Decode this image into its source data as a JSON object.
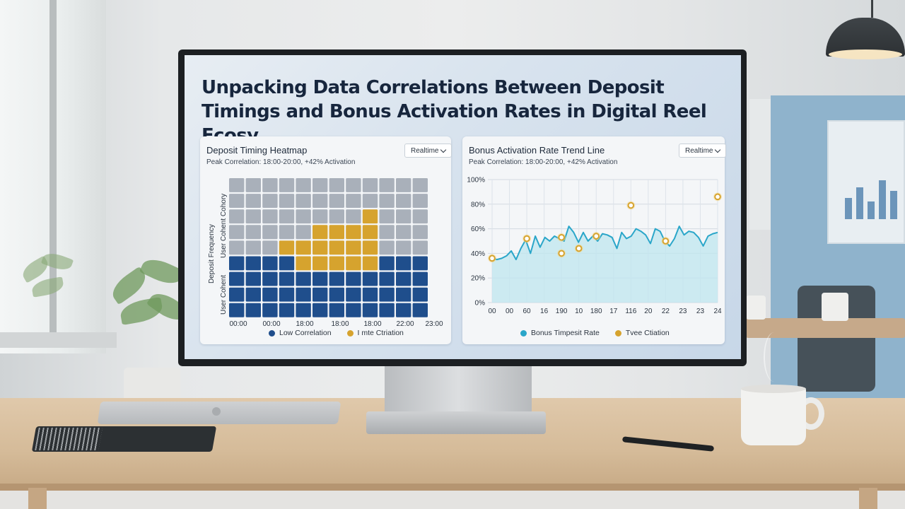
{
  "dashboard": {
    "title": "Unpacking Data Correlations Between Deposit Timings and Bonus Activation Rates in Digital Reel Ecosy."
  },
  "heatmap_card": {
    "title": "Deposit Timing Heatmap",
    "subtitle": "Peak Correlation: 18:00-20:00, +42% Activation",
    "dropdown": "Realtime",
    "y_labels": [
      "Deposit Frequency",
      "User Cohent Cohory",
      "User Cohent"
    ],
    "x_labels": [
      "00:00",
      "00:00",
      "18:00",
      "18:00",
      "18:00",
      "22:00",
      "23:00"
    ],
    "legend": [
      {
        "label": "Low Correlation",
        "color": "#1f4e8c"
      },
      {
        "label": "I mte Ctriation",
        "color": "#d6a32e"
      }
    ],
    "colors": {
      "gray": "#a9b0ba",
      "blue": "#1f4e8c",
      "gold": "#d6a32e"
    },
    "grid": [
      "gggggggggggg",
      "gggggggggggg",
      "ggggggggyggg",
      "gggggyyyyggg",
      "gggyyyyyyggg",
      "bbbbyyyyybbb",
      "bbbbbbbbbbbb",
      "bbbbbbbbbbbb",
      "bbbbbbbbbbbb"
    ]
  },
  "trend_card": {
    "title": "Bonus Activation Rate Trend Line",
    "subtitle": "Peak Correlation: 18:00-20:00, +42% Activation",
    "dropdown": "Realtime",
    "legend": [
      {
        "label": "Bonus Timpesit Rate",
        "color": "#2aa6c9"
      },
      {
        "label": "Tvee Ctiation",
        "color": "#d6a32e"
      }
    ]
  },
  "chart_data": {
    "type": "line",
    "y_ticks": [
      "100%",
      "80%",
      "60%",
      "40%",
      "20%",
      "0%"
    ],
    "ylim": [
      0,
      100
    ],
    "x_ticks": [
      "00",
      "00",
      "60",
      "16",
      "190",
      "10",
      "180",
      "17",
      "116",
      "20",
      "22",
      "23",
      "23",
      "24"
    ],
    "series": [
      {
        "name": "Bonus Timpesit Rate",
        "color": "#2aa6c9",
        "values": [
          36,
          35,
          36,
          38,
          42,
          35,
          44,
          51,
          40,
          54,
          45,
          53,
          50,
          54,
          52,
          50,
          62,
          57,
          49,
          57,
          50,
          54,
          50,
          56,
          55,
          53,
          44,
          57,
          52,
          54,
          60,
          58,
          55,
          48,
          60,
          58,
          50,
          46,
          52,
          62,
          55,
          58,
          57,
          53,
          46,
          54,
          56,
          57
        ]
      },
      {
        "name": "Tvee Ctiation",
        "color": "#d6a32e",
        "points": [
          [
            0,
            36
          ],
          [
            2,
            52
          ],
          [
            4,
            53
          ],
          [
            4,
            40
          ],
          [
            5,
            44
          ],
          [
            6,
            54
          ],
          [
            8,
            79
          ],
          [
            10,
            50
          ],
          [
            13,
            86
          ]
        ]
      }
    ]
  }
}
